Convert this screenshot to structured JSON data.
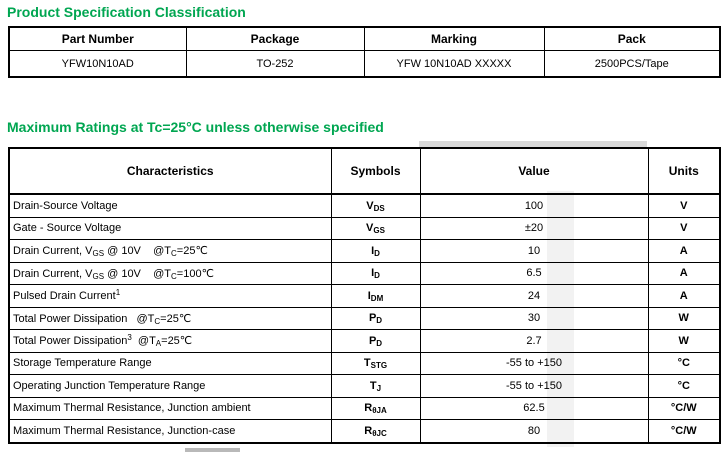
{
  "page": {
    "heading_product": "Product Specification Classification",
    "heading_ratings": "Maximum Ratings at Tc=25°C unless otherwise specified"
  },
  "colors": {
    "heading_green": "#00A651",
    "border": "#000000",
    "text": "#000000"
  },
  "spec_table": {
    "headers": [
      "Part Number",
      "Package",
      "Marking",
      "Pack"
    ],
    "rows": [
      [
        "YFW10N10AD",
        "TO-252",
        "YFW 10N10AD XXXXX",
        "2500PCS/Tape"
      ]
    ]
  },
  "ratings_table": {
    "headers": [
      "Characteristics",
      "Symbols",
      "Value",
      "Units"
    ],
    "rows": [
      {
        "characteristic": [
          {
            "t": "Drain-Source Voltage"
          }
        ],
        "symbol": [
          {
            "t": "V"
          },
          {
            "t": "DS",
            "m": "sub"
          }
        ],
        "value": "100",
        "unit": "V"
      },
      {
        "characteristic": [
          {
            "t": "Gate - Source Voltage"
          }
        ],
        "symbol": [
          {
            "t": "V"
          },
          {
            "t": "GS",
            "m": "sub"
          }
        ],
        "value": "±20",
        "unit": "V"
      },
      {
        "characteristic": [
          {
            "t": "Drain Current, V"
          },
          {
            "t": "GS",
            "m": "sub"
          },
          {
            "t": " @ 10V    @T"
          },
          {
            "t": "C",
            "m": "sub"
          },
          {
            "t": "=25℃"
          }
        ],
        "symbol": [
          {
            "t": "I"
          },
          {
            "t": "D",
            "m": "sub"
          }
        ],
        "value": "10",
        "unit": "A"
      },
      {
        "characteristic": [
          {
            "t": "Drain Current, V"
          },
          {
            "t": "GS",
            "m": "sub"
          },
          {
            "t": " @ 10V    @T"
          },
          {
            "t": "C",
            "m": "sub"
          },
          {
            "t": "=100℃"
          }
        ],
        "symbol": [
          {
            "t": "I"
          },
          {
            "t": "D",
            "m": "sub"
          }
        ],
        "value": "6.5",
        "unit": "A"
      },
      {
        "characteristic": [
          {
            "t": "Pulsed Drain Current"
          },
          {
            "t": "1",
            "m": "sup"
          }
        ],
        "symbol": [
          {
            "t": "I"
          },
          {
            "t": "DM",
            "m": "sub"
          }
        ],
        "value": "24",
        "unit": "A"
      },
      {
        "characteristic": [
          {
            "t": "Total Power Dissipation   @T"
          },
          {
            "t": "C",
            "m": "sub"
          },
          {
            "t": "=25℃"
          }
        ],
        "symbol": [
          {
            "t": "P"
          },
          {
            "t": "D",
            "m": "sub"
          }
        ],
        "value": "30",
        "unit": "W"
      },
      {
        "characteristic": [
          {
            "t": "Total Power Dissipation"
          },
          {
            "t": "3",
            "m": "sup"
          },
          {
            "t": "  @T"
          },
          {
            "t": "A",
            "m": "sub"
          },
          {
            "t": "=25℃"
          }
        ],
        "symbol": [
          {
            "t": "P"
          },
          {
            "t": "D",
            "m": "sub"
          }
        ],
        "value": "2.7",
        "unit": "W"
      },
      {
        "characteristic": [
          {
            "t": "Storage Temperature Range"
          }
        ],
        "symbol": [
          {
            "t": "T"
          },
          {
            "t": "STG",
            "m": "sub"
          }
        ],
        "value": "-55 to +150",
        "unit": "°C"
      },
      {
        "characteristic": [
          {
            "t": "Operating Junction Temperature Range"
          }
        ],
        "symbol": [
          {
            "t": "T"
          },
          {
            "t": "J",
            "m": "sub"
          }
        ],
        "value": "-55 to +150",
        "unit": "°C"
      },
      {
        "characteristic": [
          {
            "t": "Maximum Thermal Resistance, Junction ambient"
          }
        ],
        "symbol": [
          {
            "t": "R"
          },
          {
            "t": "θJA",
            "m": "sub"
          }
        ],
        "value": "62.5",
        "unit": "°C/W"
      },
      {
        "characteristic": [
          {
            "t": "Maximum Thermal Resistance, Junction-case"
          }
        ],
        "symbol": [
          {
            "t": "R"
          },
          {
            "t": "θJC",
            "m": "sub"
          }
        ],
        "value": "80",
        "unit": "°C/W"
      }
    ]
  }
}
